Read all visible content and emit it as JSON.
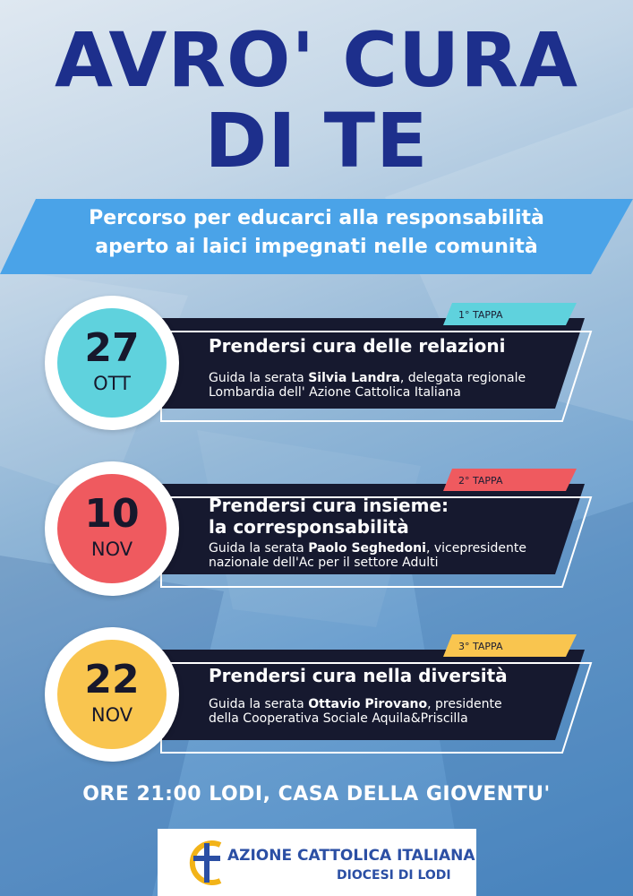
{
  "title": {
    "line1": "AVRO' CURA",
    "line2": "DI TE"
  },
  "subtitle": {
    "line1": "Percorso per educarci alla responsabilità",
    "line2": "aperto ai laici impegnati nelle comunità"
  },
  "events": [
    {
      "day": "27",
      "month": "OTT",
      "stage": "1° TAPPA",
      "title1": "Prendersi cura delle relazioni",
      "title2": "",
      "desc_prefix": "Guida la serata ",
      "desc_name": "Silvia Landra",
      "desc_rest": ", delegata regionale",
      "desc_line2": "Lombardia dell' Azione Cattolica Italiana",
      "color": "#5fd2dd"
    },
    {
      "day": "10",
      "month": "NOV",
      "stage": "2° TAPPA",
      "title1": "Prendersi cura insieme:",
      "title2": "la corresponsabilità",
      "desc_prefix": "Guida la serata ",
      "desc_name": "Paolo Seghedoni",
      "desc_rest": ", vicepresidente",
      "desc_line2": "nazionale dell'Ac per il settore Adulti",
      "color": "#ef5a5f"
    },
    {
      "day": "22",
      "month": "NOV",
      "stage": "3° TAPPA",
      "title1": "Prendersi cura nella diversità",
      "title2": "",
      "desc_prefix": "Guida la serata ",
      "desc_name": "Ottavio Pirovano",
      "desc_rest": ", presidente",
      "desc_line2": "della Cooperativa Sociale Aquila&Priscilla",
      "color": "#f9c54f"
    }
  ],
  "footer": "ORE 21:00 LODI, CASA DELLA GIOVENTU'",
  "logo": {
    "line1": "AZIONE CATTOLICA ITALIANA",
    "line2": "DIOCESI DI LODI",
    "icon": "aci-cross-logo-icon"
  },
  "colors": {
    "title": "#1d2f8c",
    "banner": "#4aa3e8",
    "card": "#16192f",
    "logo_blue": "#2b4fa4",
    "logo_yellow": "#f2b318"
  }
}
